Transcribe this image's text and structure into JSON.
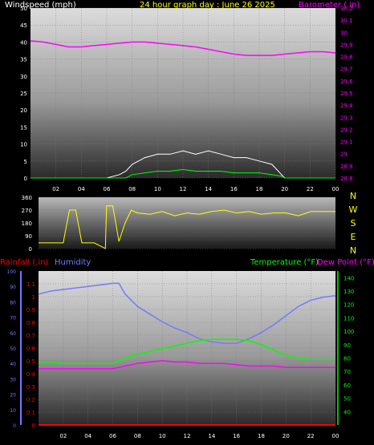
{
  "colors": {
    "background": "#000000",
    "windspeed": "#ffffff",
    "gust": "#ffffff",
    "wind_avg": "#00ff00",
    "barometer": "#ff00ff",
    "direction": "#ffff00",
    "humidity": "#7878ff",
    "temperature": "#00ff00",
    "dewpoint": "#ff00ff",
    "rainfall": "#ff0000",
    "title": "#ffff00"
  },
  "chart_data": [
    {
      "type": "line",
      "name": "wind-barometer",
      "title": "24 hour graph day : June 26 2025",
      "ylabel_left": "Windspeed (mph)",
      "ylabel_right": "Barometer (.in)",
      "x_ticks": [
        "02",
        "04",
        "06",
        "08",
        "10",
        "12",
        "14",
        "16",
        "18",
        "20",
        "22",
        "00"
      ],
      "x_range": [
        0,
        24
      ],
      "y_left_range": [
        0,
        50
      ],
      "y_left_ticks": [
        "0",
        "5",
        "10",
        "15",
        "20",
        "25",
        "30",
        "35",
        "40",
        "45",
        "50"
      ],
      "y_right_range": [
        28.8,
        30.2
      ],
      "y_right_ticks": [
        "28.8",
        "28.9",
        "29",
        "29.1",
        "29.2",
        "29.3",
        "29.4",
        "29.5",
        "29.6",
        "29.7",
        "29.8",
        "29.9",
        "30",
        "30.1",
        "30.2"
      ],
      "series": [
        {
          "name": "Barometer",
          "axis": "right",
          "x": [
            0,
            1,
            2,
            3,
            4,
            5,
            6,
            7,
            8,
            9,
            10,
            11,
            12,
            13,
            14,
            15,
            16,
            17,
            18,
            19,
            20,
            21,
            22,
            23,
            24
          ],
          "values": [
            29.93,
            29.92,
            29.9,
            29.88,
            29.88,
            29.89,
            29.9,
            29.91,
            29.92,
            29.92,
            29.91,
            29.9,
            29.89,
            29.88,
            29.86,
            29.84,
            29.82,
            29.81,
            29.81,
            29.81,
            29.82,
            29.83,
            29.84,
            29.84,
            29.83
          ]
        },
        {
          "name": "Windspeed",
          "axis": "left",
          "x": [
            0,
            6,
            7,
            7.5,
            8,
            9,
            10,
            11,
            12,
            13,
            14,
            15,
            16,
            17,
            18,
            19,
            19.5,
            20,
            24
          ],
          "values": [
            0,
            0,
            1,
            2,
            4,
            6,
            7,
            7,
            8,
            7,
            8,
            7,
            6,
            6,
            5,
            4,
            2,
            0,
            0
          ]
        },
        {
          "name": "Wind average",
          "axis": "left",
          "x": [
            0,
            7.5,
            8,
            9,
            10,
            11,
            12,
            13,
            14,
            15,
            16,
            17,
            18,
            19,
            19.8,
            20,
            24
          ],
          "values": [
            0,
            0,
            1,
            1.5,
            2,
            2,
            2.5,
            2,
            2,
            2,
            1.5,
            1.5,
            1.5,
            1,
            0.5,
            0,
            0
          ]
        }
      ]
    },
    {
      "type": "line",
      "name": "wind-direction",
      "y_range": [
        0,
        360
      ],
      "y_ticks": [
        "0",
        "90",
        "180",
        "270",
        "360"
      ],
      "compass_labels": [
        "N",
        "W",
        "S",
        "E",
        "N"
      ],
      "x_range": [
        0,
        24
      ],
      "series": [
        {
          "name": "Wind direction",
          "x": [
            0,
            1,
            2,
            2.5,
            3,
            3.5,
            4.5,
            5.4,
            5.5,
            6,
            6.5,
            7,
            7.5,
            8,
            9,
            10,
            11,
            12,
            13,
            14,
            15,
            16,
            17,
            18,
            19,
            20,
            21,
            22,
            23,
            24
          ],
          "values": [
            40,
            40,
            40,
            270,
            270,
            40,
            40,
            0,
            300,
            300,
            50,
            180,
            270,
            250,
            240,
            260,
            230,
            250,
            240,
            260,
            270,
            250,
            260,
            240,
            250,
            250,
            230,
            260,
            260,
            260
          ]
        }
      ]
    },
    {
      "type": "line",
      "name": "temp-humidity-rain",
      "ylabel_left_rain": "Rainfall (.in)",
      "ylabel_left_humidity": "Humidity",
      "ylabel_right_temp": "Temperature (°F)",
      "ylabel_right_dew": "Dew Point (°F)",
      "x_ticks": [
        "02",
        "04",
        "06",
        "08",
        "10",
        "12",
        "14",
        "16",
        "18",
        "20",
        "22",
        "00"
      ],
      "x_range": [
        0,
        24
      ],
      "rain_range": [
        0,
        1.2
      ],
      "rain_ticks": [
        "0",
        "0.1",
        "0.2",
        "0.3",
        "0.4",
        "0.5",
        "0.6",
        "0.7",
        "0.8",
        "0.9",
        "1",
        "1.1"
      ],
      "humidity_range": [
        0,
        100
      ],
      "humidity_ticks": [
        "0",
        "10",
        "20",
        "30",
        "40",
        "50",
        "60",
        "70",
        "80",
        "90",
        "100"
      ],
      "temp_range": [
        30,
        145
      ],
      "temp_ticks": [
        "40",
        "50",
        "60",
        "70",
        "80",
        "90",
        "100",
        "110",
        "120",
        "130",
        "140"
      ],
      "series": [
        {
          "name": "Humidity",
          "axis": "humidity",
          "x": [
            0,
            1,
            2,
            3,
            4,
            5,
            6,
            6.5,
            7,
            8,
            9,
            10,
            11,
            12,
            13,
            14,
            15,
            16,
            17,
            18,
            19,
            20,
            21,
            22,
            23,
            24
          ],
          "values": [
            85,
            87,
            88,
            89,
            90,
            91,
            92,
            92,
            85,
            77,
            72,
            67,
            63,
            60,
            56,
            54,
            53,
            53,
            56,
            60,
            65,
            71,
            77,
            81,
            83,
            84
          ]
        },
        {
          "name": "Temperature",
          "axis": "temp",
          "x": [
            0,
            1,
            2,
            3,
            4,
            5,
            6,
            7,
            8,
            9,
            10,
            11,
            12,
            13,
            14,
            15,
            16,
            17,
            18,
            19,
            20,
            21,
            22,
            23,
            24
          ],
          "values": [
            77,
            77,
            76,
            76,
            76,
            76,
            76,
            80,
            83,
            85,
            87,
            89,
            91,
            93,
            94,
            94,
            94,
            93,
            90,
            86,
            82,
            80,
            79,
            79,
            79
          ]
        },
        {
          "name": "Dew Point",
          "axis": "temp",
          "x": [
            0,
            1,
            2,
            3,
            4,
            5,
            6,
            7,
            8,
            9,
            10,
            11,
            12,
            13,
            14,
            15,
            16,
            17,
            18,
            19,
            20,
            21,
            22,
            23,
            24
          ],
          "values": [
            72,
            72,
            72,
            72,
            72,
            72,
            72,
            74,
            76,
            77,
            78,
            77,
            77,
            76,
            76,
            76,
            75,
            74,
            74,
            74,
            73,
            73,
            73,
            73,
            73
          ]
        },
        {
          "name": "Rainfall",
          "axis": "rain",
          "x": [
            0,
            24
          ],
          "values": [
            0,
            0
          ]
        }
      ]
    }
  ]
}
